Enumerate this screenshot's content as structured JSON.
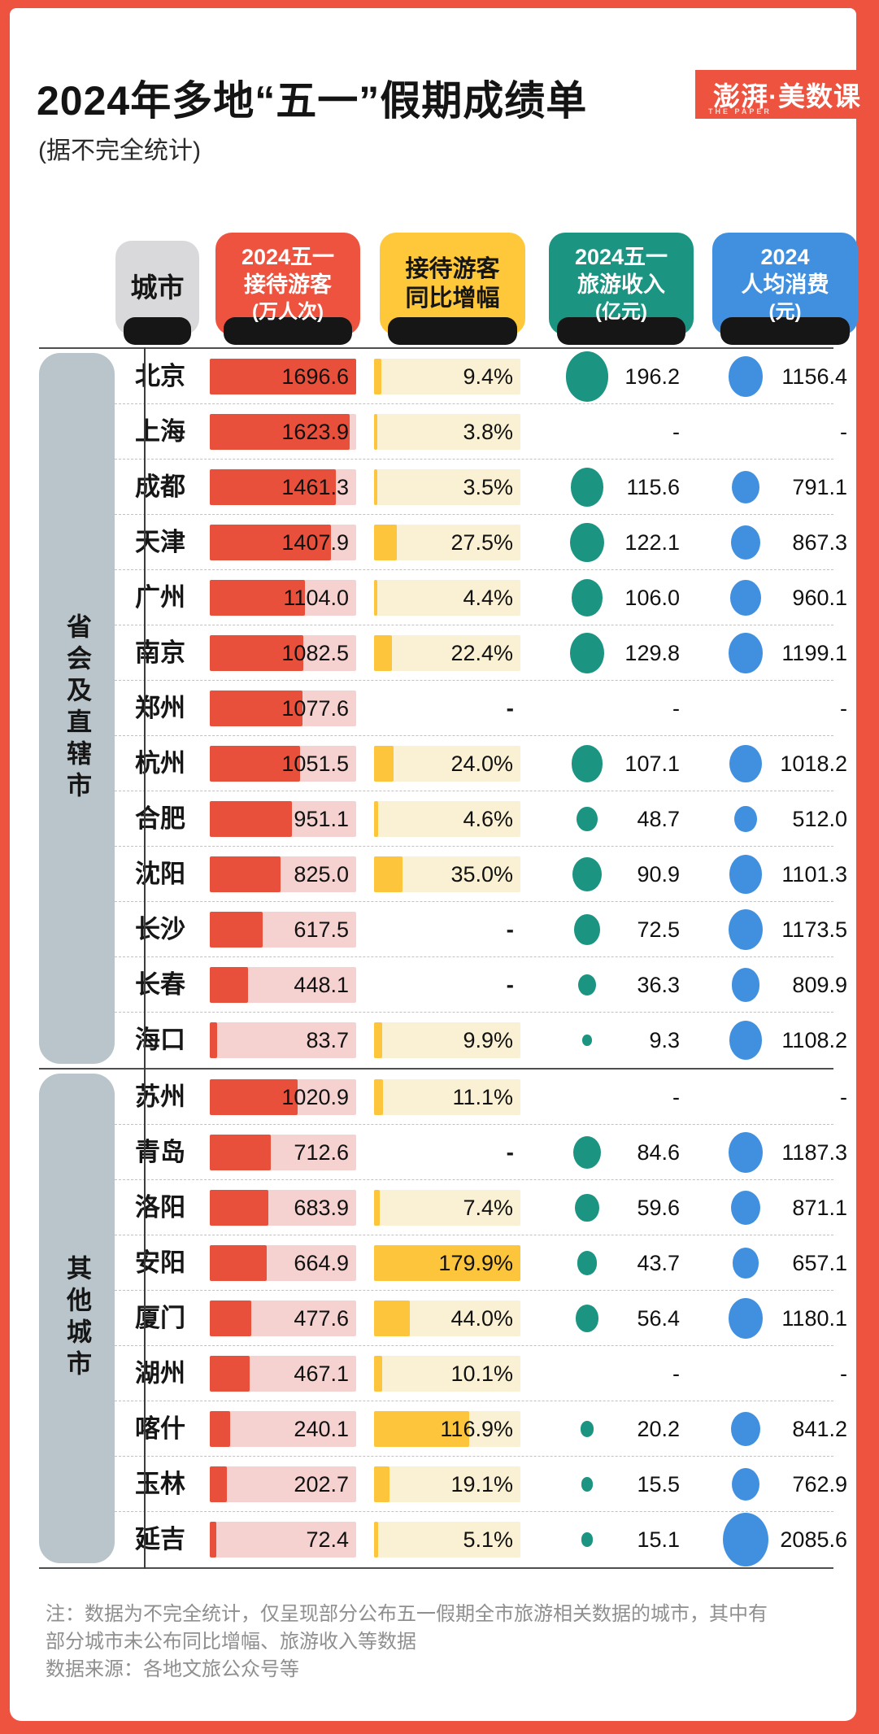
{
  "page": {
    "title": "2024年多地“五一”假期成绩单",
    "subtitle": "(据不完全统计)",
    "logo": {
      "main": "澎湃·美数课",
      "sub": "THE PAPER"
    }
  },
  "columns": [
    {
      "id": "city",
      "label": "城市",
      "color": "#D9D9DB",
      "lines": [
        "城市"
      ]
    },
    {
      "id": "visitors",
      "label": "2024五一接待游客(万人次)",
      "color": "#EE5340",
      "lines": [
        "2024五一",
        "接待游客",
        "(万人次)"
      ]
    },
    {
      "id": "growth",
      "label": "接待游客同比增幅",
      "color": "#FFC83A",
      "lines": [
        "接待游客",
        "同比增幅"
      ]
    },
    {
      "id": "revenue",
      "label": "2024五一旅游收入(亿元)",
      "color": "#1B9482",
      "lines": [
        "2024五一",
        "旅游收入",
        "(亿元)"
      ]
    },
    {
      "id": "per_capita",
      "label": "2024人均消费(元)",
      "color": "#4190E0",
      "lines": [
        "2024",
        "人均消费",
        "(元)"
      ]
    }
  ],
  "chart_data": {
    "type": "table",
    "title": "2024年多地“五一”假期成绩单",
    "missing_marker": "-",
    "scales": {
      "visitors_bar_max": 1700,
      "growth_bar_max_pct": 179.9,
      "revenue_circle_max": 196.2,
      "per_capita_circle_max": 2085.6
    },
    "groups": [
      {
        "label": "省会及直辖市",
        "rows": [
          {
            "city": "北京",
            "visitors": 1696.6,
            "growth_pct": 9.4,
            "revenue": 196.2,
            "per_capita": 1156.4
          },
          {
            "city": "上海",
            "visitors": 1623.9,
            "growth_pct": 3.8,
            "revenue": null,
            "per_capita": null
          },
          {
            "city": "成都",
            "visitors": 1461.3,
            "growth_pct": 3.5,
            "revenue": 115.6,
            "per_capita": 791.1
          },
          {
            "city": "天津",
            "visitors": 1407.9,
            "growth_pct": 27.5,
            "revenue": 122.1,
            "per_capita": 867.3
          },
          {
            "city": "广州",
            "visitors": 1104.0,
            "growth_pct": 4.4,
            "revenue": 106.0,
            "per_capita": 960.1
          },
          {
            "city": "南京",
            "visitors": 1082.5,
            "growth_pct": 22.4,
            "revenue": 129.8,
            "per_capita": 1199.1
          },
          {
            "city": "郑州",
            "visitors": 1077.6,
            "growth_pct": null,
            "revenue": null,
            "per_capita": null
          },
          {
            "city": "杭州",
            "visitors": 1051.5,
            "growth_pct": 24.0,
            "revenue": 107.1,
            "per_capita": 1018.2
          },
          {
            "city": "合肥",
            "visitors": 951.1,
            "growth_pct": 4.6,
            "revenue": 48.7,
            "per_capita": 512.0
          },
          {
            "city": "沈阳",
            "visitors": 825.0,
            "growth_pct": 35.0,
            "revenue": 90.9,
            "per_capita": 1101.3
          },
          {
            "city": "长沙",
            "visitors": 617.5,
            "growth_pct": null,
            "revenue": 72.5,
            "per_capita": 1173.5
          },
          {
            "city": "长春",
            "visitors": 448.1,
            "growth_pct": null,
            "revenue": 36.3,
            "per_capita": 809.9
          },
          {
            "city": "海口",
            "visitors": 83.7,
            "growth_pct": 9.9,
            "revenue": 9.3,
            "per_capita": 1108.2
          }
        ]
      },
      {
        "label": "其他城市",
        "rows": [
          {
            "city": "苏州",
            "visitors": 1020.9,
            "growth_pct": 11.1,
            "revenue": null,
            "per_capita": null
          },
          {
            "city": "青岛",
            "visitors": 712.6,
            "growth_pct": null,
            "revenue": 84.6,
            "per_capita": 1187.3
          },
          {
            "city": "洛阳",
            "visitors": 683.9,
            "growth_pct": 7.4,
            "revenue": 59.6,
            "per_capita": 871.1
          },
          {
            "city": "安阳",
            "visitors": 664.9,
            "growth_pct": 179.9,
            "revenue": 43.7,
            "per_capita": 657.1
          },
          {
            "city": "厦门",
            "visitors": 477.6,
            "growth_pct": 44.0,
            "revenue": 56.4,
            "per_capita": 1180.1
          },
          {
            "city": "湖州",
            "visitors": 467.1,
            "growth_pct": 10.1,
            "revenue": null,
            "per_capita": null
          },
          {
            "city": "喀什",
            "visitors": 240.1,
            "growth_pct": 116.9,
            "revenue": 20.2,
            "per_capita": 841.2
          },
          {
            "city": "玉林",
            "visitors": 202.7,
            "growth_pct": 19.1,
            "revenue": 15.5,
            "per_capita": 762.9
          },
          {
            "city": "延吉",
            "visitors": 72.4,
            "growth_pct": 5.1,
            "revenue": 15.1,
            "per_capita": 2085.6
          }
        ]
      }
    ]
  },
  "theme": {
    "frame_red": "#EE5340",
    "bar_red_fill": "#E8503C",
    "bar_red_track": "#F5D2D0",
    "bar_yellow_fill": "#FCC53C",
    "bar_yellow_track": "#FAF0D3",
    "circle_green": "#1B9482",
    "circle_blue": "#4190E0",
    "bracket_gray": "#B9C5CA",
    "pill_gray": "#D9D9DB"
  },
  "footer": {
    "note_line1": "注：数据为不完全统计，仅呈现部分公布五一假期全市旅游相关数据的城市，其中有",
    "note_line2": "部分城市未公布同比增幅、旅游收入等数据",
    "source": "数据来源：各地文旅公众号等"
  }
}
